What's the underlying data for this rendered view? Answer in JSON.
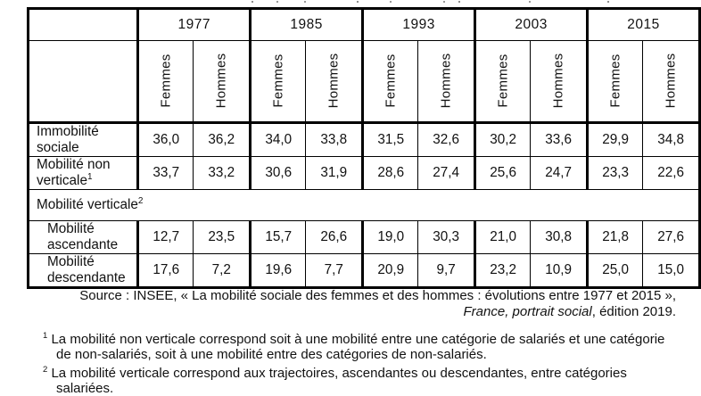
{
  "table": {
    "years": [
      "1977",
      "1985",
      "1993",
      "2003",
      "2015"
    ],
    "gender_headers": [
      "Femmes",
      "Hommes"
    ],
    "rows": [
      {
        "label": "Immobilité sociale",
        "sup": "",
        "values": [
          "36,0",
          "36,2",
          "34,0",
          "33,8",
          "31,5",
          "32,6",
          "30,2",
          "33,6",
          "29,9",
          "34,8"
        ]
      },
      {
        "label": "Mobilité non verticale",
        "sup": "1",
        "values": [
          "33,7",
          "33,2",
          "30,6",
          "31,9",
          "28,6",
          "27,4",
          "25,6",
          "24,7",
          "23,3",
          "22,6"
        ]
      },
      {
        "label": "Mobilité verticale",
        "sup": "2",
        "values": []
      },
      {
        "label": "Mobilité ascendante",
        "sup": "",
        "values": [
          "12,7",
          "23,5",
          "15,7",
          "26,6",
          "19,0",
          "30,3",
          "21,0",
          "30,8",
          "21,8",
          "27,6"
        ]
      },
      {
        "label": "Mobilité descendante",
        "sup": "",
        "values": [
          "17,6",
          "7,2",
          "19,6",
          "7,7",
          "20,9",
          "9,7",
          "23,2",
          "10,9",
          "25,0",
          "15,0"
        ]
      }
    ]
  },
  "source": {
    "line1": "Source : INSEE, « La mobilité sociale des femmes et des hommes : évolutions entre 1977 et 2015 »,",
    "line2_italic": "France, portrait social",
    "line2_rest": ", édition 2019."
  },
  "footnotes": [
    {
      "marker": "1",
      "text": "La mobilité non verticale correspond soit à une mobilité entre une catégorie de salariés et une catégorie de non-salariés, soit à une mobilité entre des catégories de non-salariés."
    },
    {
      "marker": "2",
      "text": "La mobilité verticale correspond aux trajectoires, ascendantes ou descendantes, entre catégories salariées."
    }
  ]
}
